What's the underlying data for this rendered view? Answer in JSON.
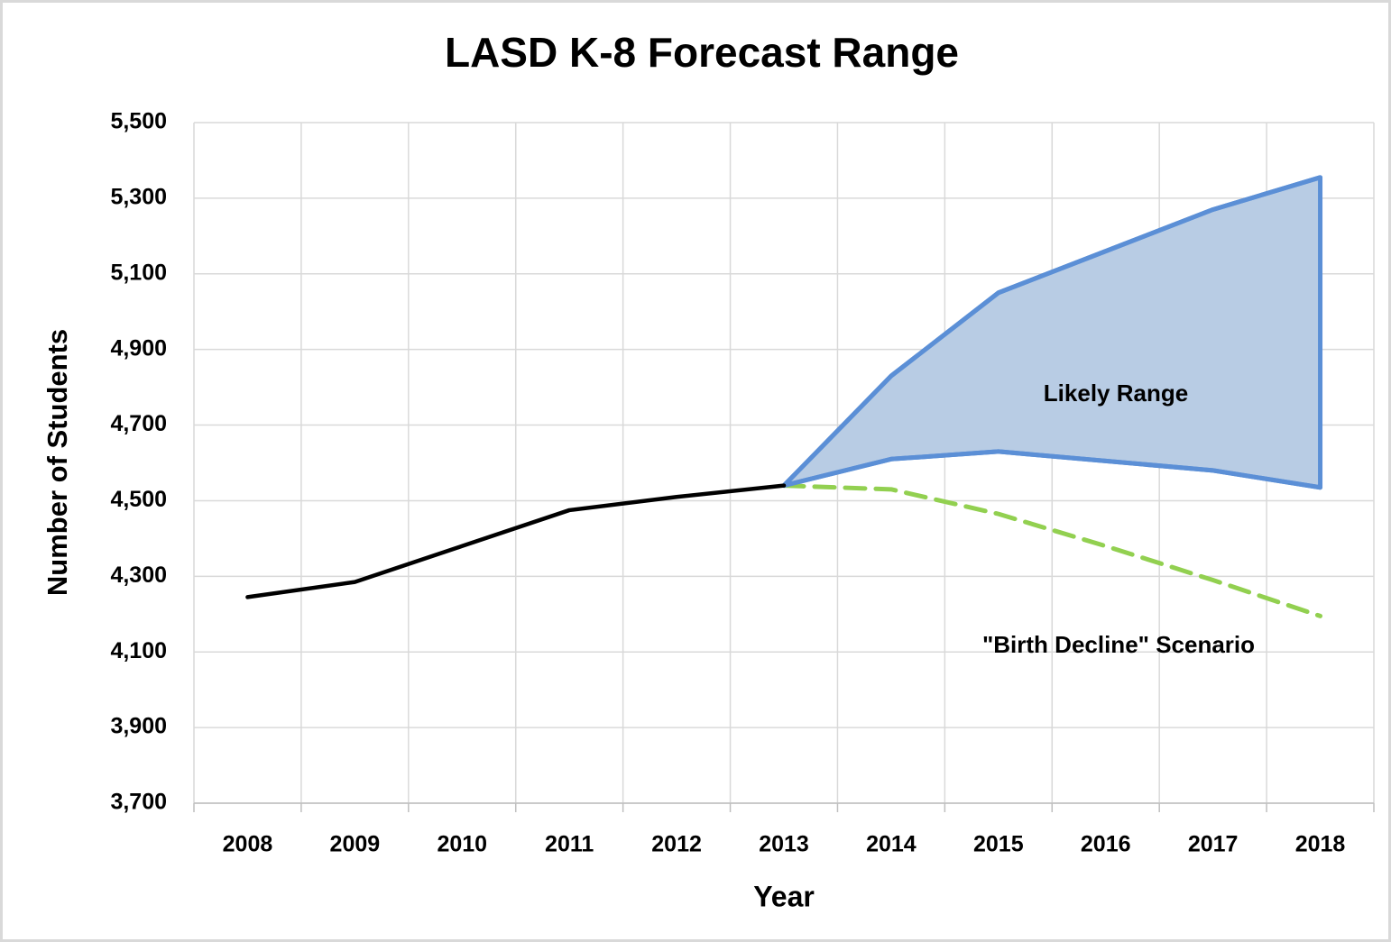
{
  "chart_data": {
    "type": "line",
    "title": "LASD K-8 Forecast Range",
    "xlabel": "Year",
    "ylabel": "Number of Students",
    "categories": [
      "2008",
      "2009",
      "2010",
      "2011",
      "2012",
      "2013",
      "2014",
      "2015",
      "2016",
      "2017",
      "2018"
    ],
    "series": [
      {
        "color": "#000000",
        "values": [
          4245,
          4285,
          4380,
          4475,
          4510,
          4540,
          null,
          null,
          null,
          null,
          null
        ]
      },
      {
        "color": "#5b8fd6",
        "values": [
          null,
          null,
          null,
          null,
          null,
          4540,
          4830,
          5050,
          5160,
          5270,
          5355
        ]
      },
      {
        "color": "#5b8fd6",
        "values": [
          null,
          null,
          null,
          null,
          null,
          4540,
          4610,
          4630,
          4605,
          4580,
          4535
        ]
      },
      {
        "color": "#92d050",
        "dashed": true,
        "values": [
          null,
          null,
          null,
          null,
          null,
          4540,
          4530,
          4465,
          4380,
          4290,
          4195
        ]
      }
    ],
    "range_fill": "#b8cce4",
    "annotations": [
      "Likely Range",
      "\"Birth Decline\" Scenario"
    ],
    "ylim": [
      3700,
      5500
    ],
    "yticks": [
      {
        "value": 3700,
        "label": "3,700"
      },
      {
        "value": 3900,
        "label": "3,900"
      },
      {
        "value": 4100,
        "label": "4,100"
      },
      {
        "value": 4300,
        "label": "4,300"
      },
      {
        "value": 4500,
        "label": "4,500"
      },
      {
        "value": 4700,
        "label": "4,700"
      },
      {
        "value": 4900,
        "label": "4,900"
      },
      {
        "value": 5100,
        "label": "5,100"
      },
      {
        "value": 5300,
        "label": "5,300"
      },
      {
        "value": 5500,
        "label": "5,500"
      }
    ],
    "grid": true
  }
}
